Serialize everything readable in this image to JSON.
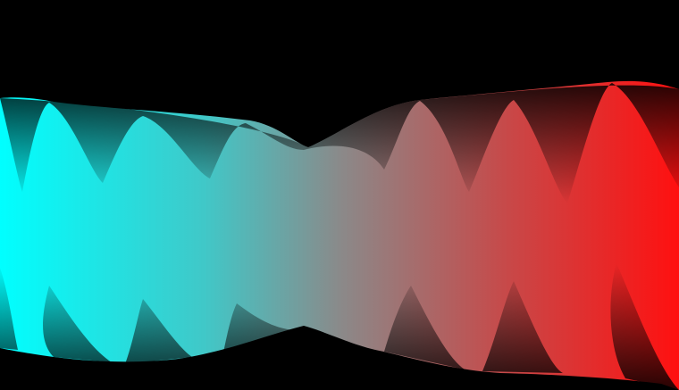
{
  "scene": {
    "background_color": "#000000",
    "gradient_start_color": "#00ffff",
    "gradient_mid_color": "#8a8a8a",
    "gradient_end_color": "#ff1010",
    "shadow_color": "#000000"
  }
}
